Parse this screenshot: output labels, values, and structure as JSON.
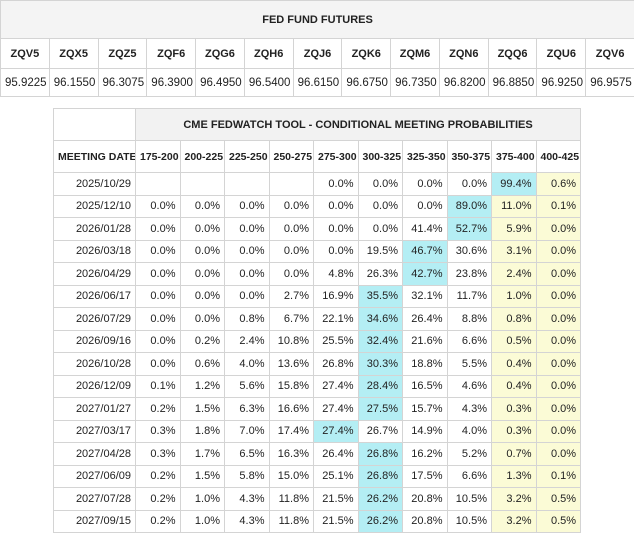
{
  "futures": {
    "title": "FED FUND FUTURES",
    "headers": [
      "ZQV5",
      "ZQX5",
      "ZQZ5",
      "ZQF6",
      "ZQG6",
      "ZQH6",
      "ZQJ6",
      "ZQK6",
      "ZQM6",
      "ZQN6",
      "ZQQ6",
      "ZQU6",
      "ZQV6"
    ],
    "values": [
      "95.9225",
      "96.1550",
      "96.3075",
      "96.3900",
      "96.4950",
      "96.5400",
      "96.6150",
      "96.6750",
      "96.7350",
      "96.8200",
      "96.8850",
      "96.9250",
      "96.9575"
    ]
  },
  "probabilities": {
    "title": "CME FEDWATCH TOOL - CONDITIONAL MEETING PROBABILITIES",
    "headers": [
      "MEETING DATE",
      "175-200",
      "200-225",
      "225-250",
      "250-275",
      "275-300",
      "300-325",
      "325-350",
      "350-375",
      "375-400",
      "400-425"
    ],
    "rows": [
      [
        "2025/10/29",
        null,
        null,
        null,
        null,
        "0.0%",
        "0.0%",
        "0.0%",
        "0.0%",
        "99.4%",
        "0.6%"
      ],
      [
        "2025/12/10",
        "0.0%",
        "0.0%",
        "0.0%",
        "0.0%",
        "0.0%",
        "0.0%",
        "0.0%",
        "89.0%",
        "11.0%",
        "0.1%"
      ],
      [
        "2026/01/28",
        "0.0%",
        "0.0%",
        "0.0%",
        "0.0%",
        "0.0%",
        "0.0%",
        "41.4%",
        "52.7%",
        "5.9%",
        "0.0%"
      ],
      [
        "2026/03/18",
        "0.0%",
        "0.0%",
        "0.0%",
        "0.0%",
        "0.0%",
        "19.5%",
        "46.7%",
        "30.6%",
        "3.1%",
        "0.0%"
      ],
      [
        "2026/04/29",
        "0.0%",
        "0.0%",
        "0.0%",
        "0.0%",
        "4.8%",
        "26.3%",
        "42.7%",
        "23.8%",
        "2.4%",
        "0.0%"
      ],
      [
        "2026/06/17",
        "0.0%",
        "0.0%",
        "0.0%",
        "2.7%",
        "16.9%",
        "35.5%",
        "32.1%",
        "11.7%",
        "1.0%",
        "0.0%"
      ],
      [
        "2026/07/29",
        "0.0%",
        "0.0%",
        "0.8%",
        "6.7%",
        "22.1%",
        "34.6%",
        "26.4%",
        "8.8%",
        "0.8%",
        "0.0%"
      ],
      [
        "2026/09/16",
        "0.0%",
        "0.2%",
        "2.4%",
        "10.8%",
        "25.5%",
        "32.4%",
        "21.6%",
        "6.6%",
        "0.5%",
        "0.0%"
      ],
      [
        "2026/10/28",
        "0.0%",
        "0.6%",
        "4.0%",
        "13.6%",
        "26.8%",
        "30.3%",
        "18.8%",
        "5.5%",
        "0.4%",
        "0.0%"
      ],
      [
        "2026/12/09",
        "0.1%",
        "1.2%",
        "5.6%",
        "15.8%",
        "27.4%",
        "28.4%",
        "16.5%",
        "4.6%",
        "0.4%",
        "0.0%"
      ],
      [
        "2027/01/27",
        "0.2%",
        "1.5%",
        "6.3%",
        "16.6%",
        "27.4%",
        "27.5%",
        "15.7%",
        "4.3%",
        "0.3%",
        "0.0%"
      ],
      [
        "2027/03/17",
        "0.3%",
        "1.8%",
        "7.0%",
        "17.4%",
        "27.4%",
        "26.7%",
        "14.9%",
        "4.0%",
        "0.3%",
        "0.0%"
      ],
      [
        "2027/04/28",
        "0.3%",
        "1.7%",
        "6.5%",
        "16.3%",
        "26.4%",
        "26.8%",
        "16.2%",
        "5.2%",
        "0.7%",
        "0.0%"
      ],
      [
        "2027/06/09",
        "0.2%",
        "1.5%",
        "5.8%",
        "15.0%",
        "25.1%",
        "26.8%",
        "17.5%",
        "6.6%",
        "1.3%",
        "0.1%"
      ],
      [
        "2027/07/28",
        "0.2%",
        "1.0%",
        "4.3%",
        "11.8%",
        "21.5%",
        "26.2%",
        "20.8%",
        "10.5%",
        "3.2%",
        "0.5%"
      ],
      [
        "2027/09/15",
        "0.2%",
        "1.0%",
        "4.3%",
        "11.8%",
        "21.5%",
        "26.2%",
        "20.8%",
        "10.5%",
        "3.2%",
        "0.5%"
      ]
    ]
  }
}
